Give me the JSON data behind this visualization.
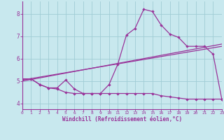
{
  "xlabel": "Windchill (Refroidissement éolien,°C)",
  "background_color": "#c8e8ee",
  "grid_color": "#a0ccd4",
  "line_color": "#993399",
  "xlim": [
    0,
    23
  ],
  "ylim": [
    3.75,
    8.55
  ],
  "yticks": [
    4,
    5,
    6,
    7,
    8
  ],
  "xticks": [
    0,
    1,
    2,
    3,
    4,
    5,
    6,
    7,
    8,
    9,
    10,
    11,
    12,
    13,
    14,
    15,
    16,
    17,
    18,
    19,
    20,
    21,
    22,
    23
  ],
  "main_line": {
    "x": [
      0,
      1,
      2,
      3,
      4,
      5,
      6,
      7,
      8,
      9,
      10,
      11,
      12,
      13,
      14,
      15,
      16,
      17,
      18,
      19,
      20,
      21,
      22,
      23
    ],
    "y": [
      5.1,
      5.1,
      4.85,
      4.7,
      4.7,
      5.05,
      4.65,
      4.45,
      4.45,
      4.45,
      4.85,
      5.75,
      7.05,
      7.35,
      8.2,
      8.1,
      7.5,
      7.1,
      6.95,
      6.55,
      6.55,
      6.55,
      6.2,
      4.2
    ]
  },
  "trend_line1": {
    "x": [
      0,
      23
    ],
    "y": [
      5.05,
      6.55
    ]
  },
  "trend_line2": {
    "x": [
      0,
      23
    ],
    "y": [
      5.0,
      6.65
    ]
  },
  "bottom_line": {
    "x": [
      0,
      1,
      2,
      3,
      4,
      5,
      6,
      7,
      8,
      9,
      10,
      11,
      12,
      13,
      14,
      15,
      16,
      17,
      18,
      19,
      20,
      21,
      22,
      23
    ],
    "y": [
      5.1,
      5.1,
      4.85,
      4.7,
      4.65,
      4.5,
      4.45,
      4.45,
      4.45,
      4.45,
      4.45,
      4.45,
      4.45,
      4.45,
      4.45,
      4.45,
      4.35,
      4.3,
      4.25,
      4.2,
      4.2,
      4.2,
      4.2,
      4.2
    ]
  }
}
